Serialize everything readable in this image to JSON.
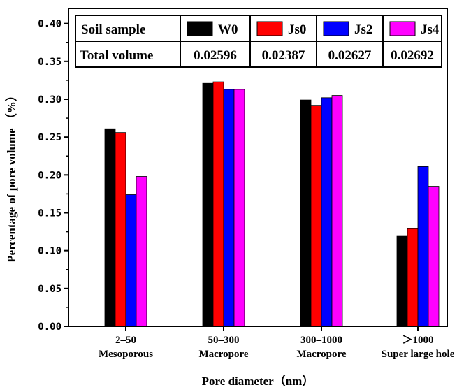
{
  "chart_data": {
    "type": "bar",
    "categories": [
      "2–50",
      "50–300",
      "300–1000",
      "＞1000"
    ],
    "category_sublabels": [
      "Mesoporous",
      "Macropore",
      "Macropore",
      "Super large hole"
    ],
    "series": [
      {
        "name": "W0",
        "color": "#000000",
        "values": [
          0.261,
          0.321,
          0.299,
          0.119
        ]
      },
      {
        "name": "Js0",
        "color": "#ff0000",
        "values": [
          0.256,
          0.323,
          0.292,
          0.129
        ]
      },
      {
        "name": "Js2",
        "color": "#0000ff",
        "values": [
          0.174,
          0.313,
          0.302,
          0.211
        ]
      },
      {
        "name": "Js4",
        "color": "#ff00ff",
        "values": [
          0.198,
          0.313,
          0.305,
          0.185
        ]
      }
    ],
    "xlabel": "Pore diameter（nm）",
    "ylabel": "Percentage of pore volume （%）",
    "ylim": [
      0,
      0.42
    ],
    "yticks": [
      "0.00",
      "0.05",
      "0.10",
      "0.15",
      "0.20",
      "0.25",
      "0.30",
      "0.35",
      "0.40"
    ],
    "legend_table": {
      "row1_label": "Soil sample",
      "row2_label": "Total volume",
      "total_volumes": [
        "0.02596",
        "0.02387",
        "0.02627",
        "0.02692"
      ],
      "placement": "top"
    },
    "grid": false
  }
}
